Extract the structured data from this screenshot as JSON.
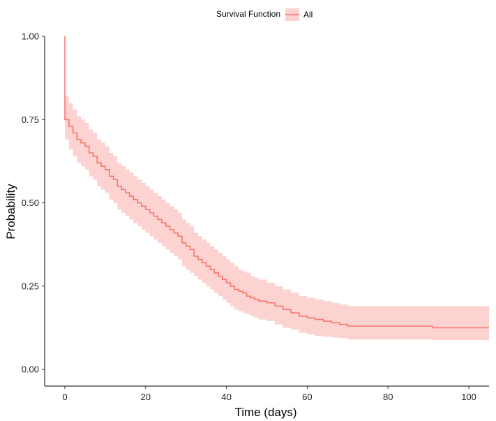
{
  "chart_data": {
    "type": "line",
    "title": "",
    "xlabel": "Time (days)",
    "ylabel": "Probability",
    "xlim": [
      -5,
      105
    ],
    "ylim": [
      -0.05,
      1.0
    ],
    "xticks": [
      0,
      20,
      40,
      60,
      80,
      100
    ],
    "xtick_labels": [
      "0",
      "20",
      "40",
      "60",
      "80",
      "100"
    ],
    "yticks": [
      0.0,
      0.25,
      0.5,
      0.75,
      1.0
    ],
    "ytick_labels": [
      "0.00",
      "0.25",
      "0.50",
      "0.75",
      "1.00"
    ],
    "grid": false,
    "legend": {
      "title": "Survival Function",
      "position": "top",
      "entries": [
        "All"
      ]
    },
    "colors": {
      "line": "#f8766d",
      "band": "#fcd3d1",
      "axis": "#000000"
    },
    "series": [
      {
        "name": "All",
        "step": true,
        "x": [
          0,
          0.01,
          1,
          2,
          3,
          4,
          5,
          6,
          7,
          8,
          9,
          10,
          11,
          12,
          13,
          14,
          15,
          16,
          17,
          18,
          19,
          20,
          21,
          22,
          23,
          24,
          25,
          26,
          27,
          28,
          29,
          30,
          31,
          32,
          33,
          34,
          35,
          36,
          37,
          38,
          39,
          40,
          41,
          42,
          43,
          44,
          45,
          46,
          47,
          48,
          50,
          52,
          54,
          56,
          58,
          60,
          62,
          64,
          66,
          68,
          70,
          72,
          75,
          80,
          85,
          91,
          105
        ],
        "y": [
          1.0,
          0.75,
          0.73,
          0.71,
          0.69,
          0.68,
          0.67,
          0.65,
          0.64,
          0.62,
          0.61,
          0.6,
          0.58,
          0.57,
          0.55,
          0.54,
          0.53,
          0.52,
          0.51,
          0.5,
          0.49,
          0.48,
          0.47,
          0.46,
          0.45,
          0.44,
          0.43,
          0.42,
          0.41,
          0.4,
          0.38,
          0.37,
          0.36,
          0.34,
          0.33,
          0.32,
          0.31,
          0.3,
          0.29,
          0.28,
          0.27,
          0.26,
          0.25,
          0.24,
          0.235,
          0.23,
          0.22,
          0.215,
          0.21,
          0.205,
          0.2,
          0.19,
          0.18,
          0.17,
          0.16,
          0.155,
          0.15,
          0.145,
          0.14,
          0.135,
          0.13,
          0.13,
          0.13,
          0.13,
          0.13,
          0.125,
          0.125
        ],
        "lower": [
          1.0,
          0.69,
          0.66,
          0.64,
          0.62,
          0.61,
          0.6,
          0.58,
          0.57,
          0.55,
          0.54,
          0.53,
          0.51,
          0.5,
          0.48,
          0.47,
          0.46,
          0.45,
          0.44,
          0.43,
          0.42,
          0.41,
          0.4,
          0.39,
          0.38,
          0.37,
          0.36,
          0.35,
          0.34,
          0.33,
          0.31,
          0.3,
          0.29,
          0.28,
          0.27,
          0.26,
          0.25,
          0.24,
          0.23,
          0.22,
          0.21,
          0.2,
          0.19,
          0.18,
          0.175,
          0.17,
          0.165,
          0.16,
          0.155,
          0.15,
          0.145,
          0.135,
          0.125,
          0.12,
          0.11,
          0.105,
          0.1,
          0.098,
          0.096,
          0.094,
          0.09,
          0.09,
          0.09,
          0.09,
          0.09,
          0.088,
          0.088
        ],
        "upper": [
          1.0,
          0.82,
          0.8,
          0.78,
          0.76,
          0.75,
          0.74,
          0.72,
          0.71,
          0.69,
          0.68,
          0.67,
          0.65,
          0.64,
          0.62,
          0.61,
          0.6,
          0.59,
          0.58,
          0.57,
          0.56,
          0.55,
          0.54,
          0.53,
          0.52,
          0.51,
          0.5,
          0.49,
          0.48,
          0.47,
          0.45,
          0.44,
          0.43,
          0.41,
          0.4,
          0.39,
          0.38,
          0.37,
          0.36,
          0.35,
          0.34,
          0.33,
          0.32,
          0.31,
          0.3,
          0.295,
          0.29,
          0.28,
          0.275,
          0.27,
          0.26,
          0.25,
          0.24,
          0.23,
          0.22,
          0.215,
          0.21,
          0.205,
          0.2,
          0.195,
          0.19,
          0.19,
          0.19,
          0.19,
          0.19,
          0.19,
          0.19
        ]
      }
    ]
  }
}
